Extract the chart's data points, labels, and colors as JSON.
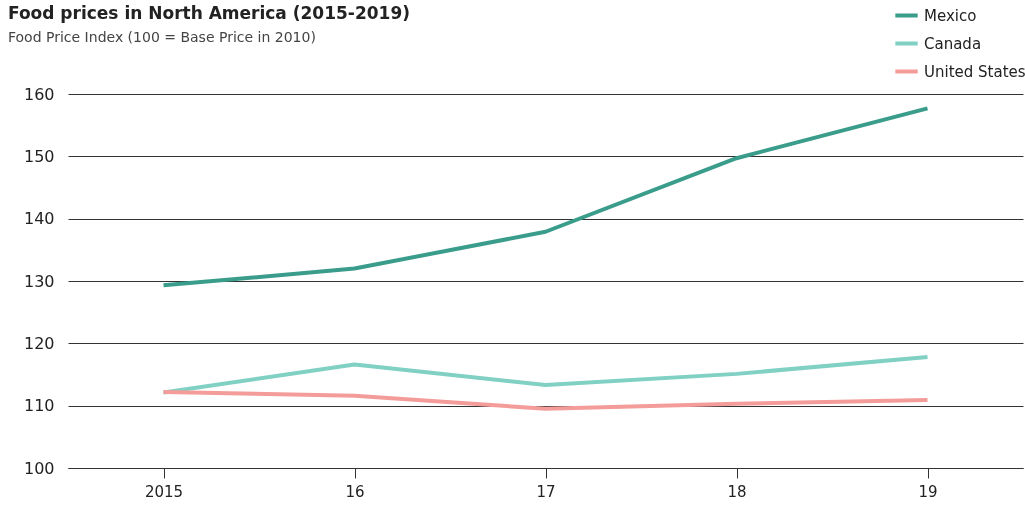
{
  "chart_data": {
    "type": "line",
    "title": "Food prices in North America (2015-2019)",
    "subtitle": "Food Price Index (100 = Base Price in 2010)",
    "categories": [
      "2015",
      "16",
      "17",
      "18",
      "19"
    ],
    "series": [
      {
        "name": "Mexico",
        "color": "#3a9c8a",
        "values": [
          129.3,
          132.0,
          137.9,
          149.7,
          157.7
        ]
      },
      {
        "name": "Canada",
        "color": "#80d0c4",
        "values": [
          112.1,
          116.6,
          113.3,
          115.1,
          117.8
        ]
      },
      {
        "name": "United States",
        "color": "#f39c99",
        "values": [
          112.2,
          111.6,
          109.5,
          110.3,
          110.9
        ]
      }
    ],
    "ylim": [
      100,
      160
    ],
    "yticks": [
      100,
      110,
      120,
      130,
      140,
      150,
      160
    ],
    "grid": "y",
    "legend": "top right",
    "marker": "none",
    "line_style": "solid"
  }
}
